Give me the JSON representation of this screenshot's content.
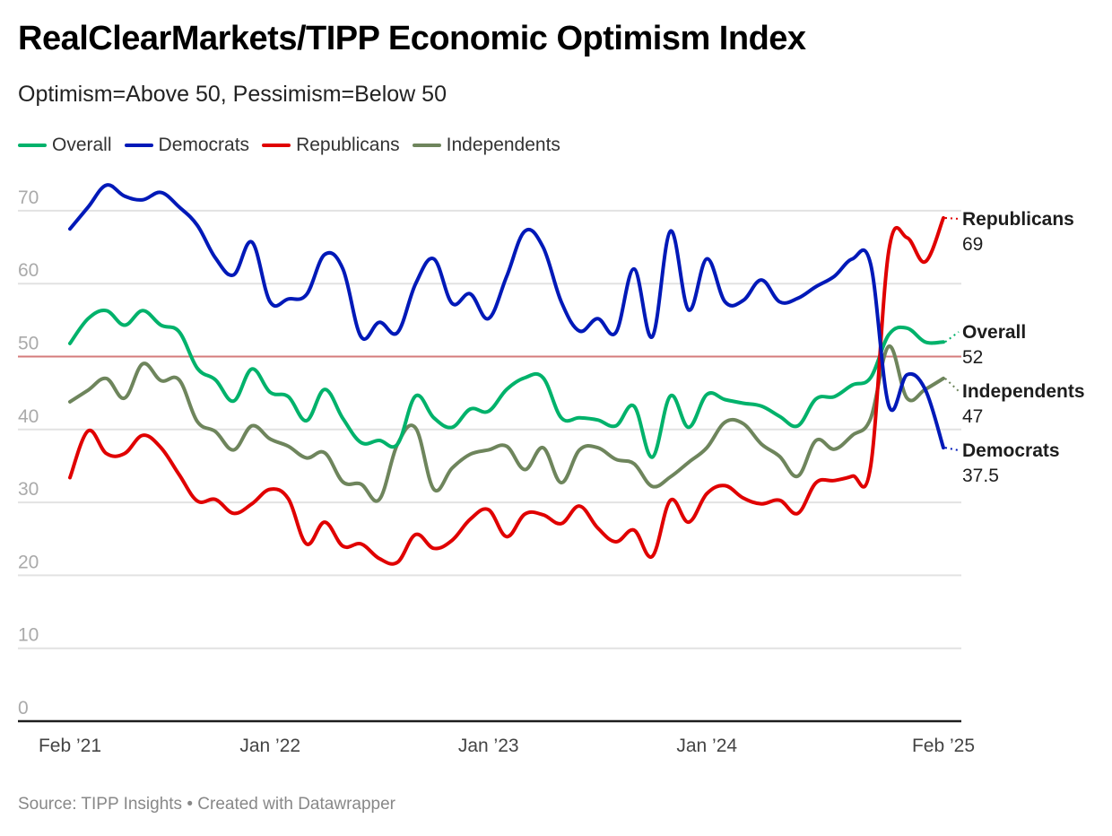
{
  "header": {
    "title": "RealClearMarkets/TIPP Economic Optimism Index",
    "subtitle": "Optimism=Above 50, Pessimism=Below 50"
  },
  "footer": {
    "source": "Source: TIPP Insights • Created with Datawrapper"
  },
  "chart_data": {
    "type": "line",
    "title": "RealClearMarkets/TIPP Economic Optimism Index",
    "subtitle": "Optimism=Above 50, Pessimism=Below 50",
    "xlabel": "",
    "ylabel": "",
    "ylim": [
      0,
      75
    ],
    "yticks": [
      0,
      10,
      20,
      30,
      40,
      50,
      60,
      70
    ],
    "x_range": [
      "Feb 2021",
      "Feb 2025"
    ],
    "x_frequency": "monthly",
    "xtick_labels": [
      {
        "index": 0,
        "label": "Feb ’21"
      },
      {
        "index": 11,
        "label": "Jan ’22"
      },
      {
        "index": 23,
        "label": "Jan ’23"
      },
      {
        "index": 35,
        "label": "Jan ’24"
      },
      {
        "index": 48,
        "label": "Feb ’25"
      }
    ],
    "reference_line": {
      "value": 50,
      "color": "#d47b7b"
    },
    "grid": true,
    "legend_position": "top-left",
    "series": [
      {
        "name": "Overall",
        "color": "#00b26b",
        "end_label": "Overall",
        "end_value": "52",
        "values": [
          51.8,
          55.2,
          56.3,
          54.3,
          56.3,
          54.3,
          53.4,
          48.4,
          46.8,
          43.9,
          48.3,
          45.1,
          44.5,
          41.2,
          45.5,
          41.5,
          38.2,
          38.5,
          38.0,
          44.6,
          41.6,
          40.3,
          42.8,
          42.5,
          45.5,
          47.1,
          47.1,
          41.6,
          41.6,
          41.3,
          40.5,
          43.2,
          36.2,
          44.6,
          40.3,
          44.8,
          44.1,
          43.6,
          43.2,
          41.8,
          40.5,
          44.2,
          44.5,
          46.1,
          47.1,
          53.0,
          53.9,
          52.0,
          52.0
        ]
      },
      {
        "name": "Democrats",
        "color": "#0019b8",
        "end_label": "Democrats",
        "end_value": "37.5",
        "values": [
          67.5,
          70.5,
          73.5,
          72.0,
          71.5,
          72.5,
          70.5,
          68.0,
          63.5,
          61.2,
          65.7,
          57.5,
          57.9,
          58.5,
          64.0,
          62.0,
          52.7,
          54.7,
          53.3,
          60.0,
          63.4,
          57.3,
          58.6,
          55.2,
          61.0,
          67.2,
          65.0,
          57.5,
          53.5,
          55.2,
          53.3,
          62.0,
          52.7,
          67.2,
          56.4,
          63.4,
          57.5,
          57.7,
          60.5,
          57.5,
          58.0,
          59.6,
          61.0,
          63.4,
          62.7,
          43.3,
          47.5,
          45.5,
          37.5
        ]
      },
      {
        "name": "Republicans",
        "color": "#e00000",
        "end_label": "Republicans",
        "end_value": "69",
        "values": [
          33.4,
          39.8,
          36.7,
          36.7,
          39.2,
          37.5,
          33.8,
          30.2,
          30.4,
          28.5,
          29.8,
          31.8,
          30.5,
          24.3,
          27.3,
          24.0,
          24.3,
          22.3,
          21.8,
          25.6,
          23.7,
          24.8,
          27.7,
          29.0,
          25.3,
          28.4,
          28.3,
          27.1,
          29.5,
          26.5,
          24.6,
          26.2,
          22.6,
          30.3,
          27.3,
          31.2,
          32.3,
          30.6,
          29.8,
          30.3,
          28.5,
          32.7,
          33.0,
          33.6,
          34.9,
          64.5,
          66.3,
          63.0,
          69.0
        ]
      },
      {
        "name": "Independents",
        "color": "#6e855c",
        "end_label": "Independents",
        "end_value": "47",
        "values": [
          43.8,
          45.4,
          47.0,
          44.3,
          49.0,
          46.7,
          46.8,
          41.1,
          39.7,
          37.2,
          40.5,
          38.7,
          37.7,
          36.1,
          36.8,
          32.8,
          32.5,
          30.4,
          38.0,
          40.2,
          31.8,
          34.7,
          36.6,
          37.2,
          37.7,
          34.5,
          37.5,
          32.7,
          37.2,
          37.5,
          35.9,
          35.3,
          32.2,
          33.5,
          35.5,
          37.5,
          41.0,
          40.8,
          38.0,
          36.3,
          33.6,
          38.5,
          37.3,
          39.2,
          41.5,
          51.4,
          44.3,
          45.5,
          47.0
        ]
      }
    ]
  }
}
